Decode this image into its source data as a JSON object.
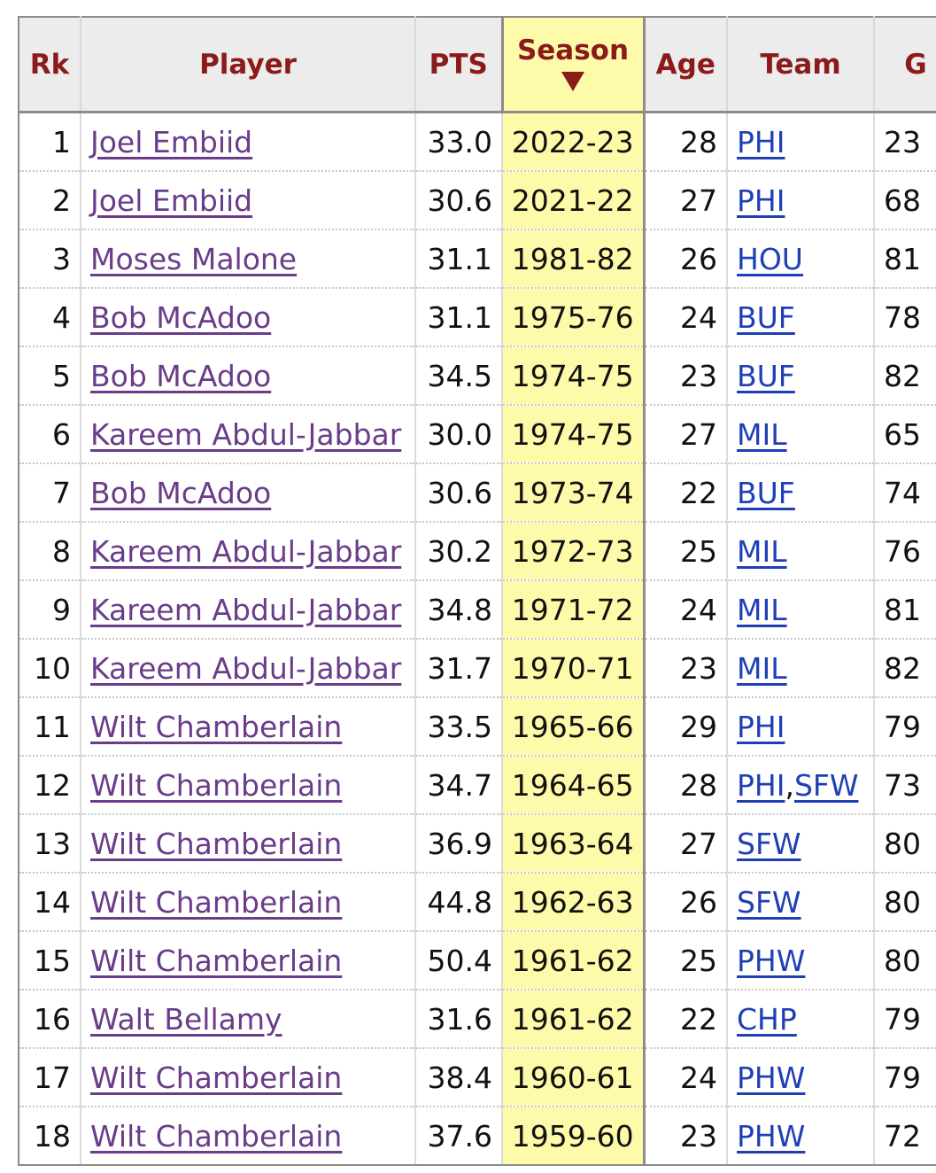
{
  "table": {
    "headers": {
      "rk": "Rk",
      "player": "Player",
      "pts": "PTS",
      "season": "Season",
      "age": "Age",
      "team": "Team",
      "g": "G"
    },
    "sorted_column": "season",
    "sort_direction": "descending",
    "rows": [
      {
        "rk": "1",
        "player": "Joel Embiid",
        "pts": "33.0",
        "season": "2022-23",
        "age": "28",
        "teams": [
          "PHI"
        ],
        "g": "23"
      },
      {
        "rk": "2",
        "player": "Joel Embiid",
        "pts": "30.6",
        "season": "2021-22",
        "age": "27",
        "teams": [
          "PHI"
        ],
        "g": "68"
      },
      {
        "rk": "3",
        "player": "Moses Malone",
        "pts": "31.1",
        "season": "1981-82",
        "age": "26",
        "teams": [
          "HOU"
        ],
        "g": "81"
      },
      {
        "rk": "4",
        "player": "Bob McAdoo",
        "pts": "31.1",
        "season": "1975-76",
        "age": "24",
        "teams": [
          "BUF"
        ],
        "g": "78"
      },
      {
        "rk": "5",
        "player": "Bob McAdoo",
        "pts": "34.5",
        "season": "1974-75",
        "age": "23",
        "teams": [
          "BUF"
        ],
        "g": "82"
      },
      {
        "rk": "6",
        "player": "Kareem Abdul-Jabbar",
        "pts": "30.0",
        "season": "1974-75",
        "age": "27",
        "teams": [
          "MIL"
        ],
        "g": "65"
      },
      {
        "rk": "7",
        "player": "Bob McAdoo",
        "pts": "30.6",
        "season": "1973-74",
        "age": "22",
        "teams": [
          "BUF"
        ],
        "g": "74"
      },
      {
        "rk": "8",
        "player": "Kareem Abdul-Jabbar",
        "pts": "30.2",
        "season": "1972-73",
        "age": "25",
        "teams": [
          "MIL"
        ],
        "g": "76"
      },
      {
        "rk": "9",
        "player": "Kareem Abdul-Jabbar",
        "pts": "34.8",
        "season": "1971-72",
        "age": "24",
        "teams": [
          "MIL"
        ],
        "g": "81"
      },
      {
        "rk": "10",
        "player": "Kareem Abdul-Jabbar",
        "pts": "31.7",
        "season": "1970-71",
        "age": "23",
        "teams": [
          "MIL"
        ],
        "g": "82"
      },
      {
        "rk": "11",
        "player": "Wilt Chamberlain",
        "pts": "33.5",
        "season": "1965-66",
        "age": "29",
        "teams": [
          "PHI"
        ],
        "g": "79"
      },
      {
        "rk": "12",
        "player": "Wilt Chamberlain",
        "pts": "34.7",
        "season": "1964-65",
        "age": "28",
        "teams": [
          "PHI",
          "SFW"
        ],
        "g": "73"
      },
      {
        "rk": "13",
        "player": "Wilt Chamberlain",
        "pts": "36.9",
        "season": "1963-64",
        "age": "27",
        "teams": [
          "SFW"
        ],
        "g": "80"
      },
      {
        "rk": "14",
        "player": "Wilt Chamberlain",
        "pts": "44.8",
        "season": "1962-63",
        "age": "26",
        "teams": [
          "SFW"
        ],
        "g": "80"
      },
      {
        "rk": "15",
        "player": "Wilt Chamberlain",
        "pts": "50.4",
        "season": "1961-62",
        "age": "25",
        "teams": [
          "PHW"
        ],
        "g": "80"
      },
      {
        "rk": "16",
        "player": "Walt Bellamy",
        "pts": "31.6",
        "season": "1961-62",
        "age": "22",
        "teams": [
          "CHP"
        ],
        "g": "79"
      },
      {
        "rk": "17",
        "player": "Wilt Chamberlain",
        "pts": "38.4",
        "season": "1960-61",
        "age": "24",
        "teams": [
          "PHW"
        ],
        "g": "79"
      },
      {
        "rk": "18",
        "player": "Wilt Chamberlain",
        "pts": "37.6",
        "season": "1959-60",
        "age": "23",
        "teams": [
          "PHW"
        ],
        "g": "72"
      }
    ]
  },
  "colors": {
    "header_text": "#8b1a1a",
    "header_bg": "#ececec",
    "sorted_bg": "#fdfaa9",
    "player_link": "#6a3c8a",
    "team_link": "#1f3fb5"
  },
  "icons": {
    "sort": "sort-descending-arrow-icon"
  }
}
